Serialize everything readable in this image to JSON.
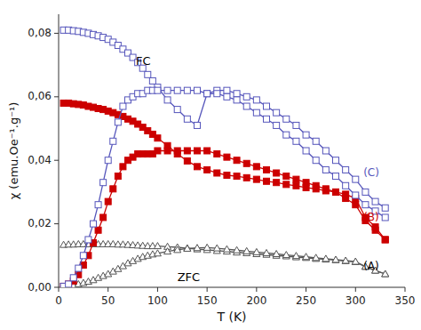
{
  "chart_data": {
    "type": "line",
    "xlabel": "T (K)",
    "ylabel": "χ (emu.Oe⁻¹.g⁻¹)",
    "xlim": [
      0,
      350
    ],
    "ylim": [
      0,
      0.086
    ],
    "xticks": [
      0,
      50,
      100,
      150,
      200,
      250,
      300,
      350
    ],
    "yticks": [
      {
        "value": 0.0,
        "label": "0,00"
      },
      {
        "value": 0.02,
        "label": "0,02"
      },
      {
        "value": 0.04,
        "label": "0,04"
      },
      {
        "value": 0.06,
        "label": "0,06"
      },
      {
        "value": 0.08,
        "label": "0,08"
      }
    ],
    "grid": false,
    "x": [
      5,
      10,
      15,
      20,
      25,
      30,
      35,
      40,
      45,
      50,
      55,
      60,
      65,
      70,
      75,
      80,
      85,
      90,
      95,
      100,
      110,
      120,
      130,
      140,
      150,
      160,
      170,
      180,
      190,
      200,
      210,
      220,
      230,
      240,
      250,
      260,
      270,
      280,
      290,
      300,
      310,
      320,
      330
    ],
    "series": [
      {
        "color": "#555555",
        "marker": "triangle-open",
        "values": [
          0.0134,
          0.0135,
          0.0135,
          0.0136,
          0.0136,
          0.0136,
          0.0136,
          0.0136,
          0.0136,
          0.0136,
          0.0136,
          0.0135,
          0.0135,
          0.0134,
          0.0133,
          0.0132,
          0.0131,
          0.013,
          0.013,
          0.013,
          0.0128,
          0.0126,
          0.0123,
          0.012,
          0.0118,
          0.0115,
          0.0113,
          0.011,
          0.0108,
          0.0105,
          0.0103,
          0.01,
          0.0098,
          0.0095,
          0.0093,
          0.009,
          0.0088,
          0.0086,
          0.0083,
          0.008,
          0.0065,
          0.0053,
          0.0042
        ]
      },
      {
        "color": "#555555",
        "marker": "triangle-open",
        "values": [
          0.0001,
          0.0003,
          0.0006,
          0.001,
          0.0014,
          0.0018,
          0.0023,
          0.003,
          0.0036,
          0.0042,
          0.005,
          0.0058,
          0.0067,
          0.0076,
          0.0083,
          0.009,
          0.0096,
          0.01,
          0.0104,
          0.0107,
          0.0113,
          0.0118,
          0.0122,
          0.0124,
          0.0125,
          0.0123,
          0.012,
          0.0117,
          0.0114,
          0.0111,
          0.0108,
          0.0105,
          0.0102,
          0.0099,
          0.0096,
          0.0093,
          0.009,
          0.0087,
          0.0084,
          0.0081,
          0.0065,
          0.0053,
          0.0042
        ]
      },
      {
        "color": "#cc0000",
        "marker": "square",
        "values": [
          0.058,
          0.058,
          0.0578,
          0.0576,
          0.0574,
          0.057,
          0.0567,
          0.0563,
          0.056,
          0.0555,
          0.055,
          0.0544,
          0.0538,
          0.053,
          0.0523,
          0.0514,
          0.0504,
          0.0493,
          0.0482,
          0.047,
          0.0446,
          0.042,
          0.0398,
          0.038,
          0.037,
          0.036,
          0.0353,
          0.035,
          0.0345,
          0.034,
          0.0334,
          0.033,
          0.0324,
          0.032,
          0.0314,
          0.031,
          0.0304,
          0.03,
          0.0293,
          0.028,
          0.022,
          0.019,
          0.015
        ]
      },
      {
        "color": "#cc0000",
        "marker": "square",
        "values": [
          0.0003,
          0.001,
          0.002,
          0.004,
          0.007,
          0.01,
          0.014,
          0.018,
          0.022,
          0.027,
          0.031,
          0.035,
          0.038,
          0.04,
          0.041,
          0.042,
          0.042,
          0.042,
          0.042,
          0.043,
          0.043,
          0.043,
          0.043,
          0.043,
          0.043,
          0.042,
          0.041,
          0.04,
          0.039,
          0.038,
          0.037,
          0.036,
          0.035,
          0.034,
          0.033,
          0.032,
          0.031,
          0.03,
          0.028,
          0.026,
          0.021,
          0.018,
          0.015
        ]
      },
      {
        "color": "#5555bb",
        "marker": "square-open",
        "values": [
          0.081,
          0.081,
          0.0808,
          0.0806,
          0.0803,
          0.08,
          0.0796,
          0.0792,
          0.0787,
          0.0781,
          0.0772,
          0.0762,
          0.075,
          0.0738,
          0.0724,
          0.0708,
          0.069,
          0.067,
          0.065,
          0.063,
          0.059,
          0.056,
          0.053,
          0.051,
          0.061,
          0.062,
          0.062,
          0.061,
          0.06,
          0.059,
          0.057,
          0.055,
          0.053,
          0.051,
          0.048,
          0.046,
          0.043,
          0.04,
          0.037,
          0.034,
          0.03,
          0.027,
          0.025
        ]
      },
      {
        "color": "#5555bb",
        "marker": "square-open",
        "values": [
          0.0003,
          0.001,
          0.003,
          0.006,
          0.01,
          0.015,
          0.02,
          0.026,
          0.033,
          0.04,
          0.046,
          0.052,
          0.057,
          0.059,
          0.06,
          0.061,
          0.061,
          0.062,
          0.062,
          0.062,
          0.062,
          0.062,
          0.062,
          0.062,
          0.061,
          0.061,
          0.06,
          0.059,
          0.057,
          0.055,
          0.053,
          0.051,
          0.048,
          0.046,
          0.043,
          0.04,
          0.037,
          0.035,
          0.032,
          0.029,
          0.026,
          0.024,
          0.022
        ]
      }
    ],
    "annotations": [
      {
        "text": "FC",
        "x": 78,
        "y": 0.071,
        "color": "#000000"
      },
      {
        "text": "ZFC",
        "x": 120,
        "y": 0.003,
        "color": "#000000"
      },
      {
        "text": "(C)",
        "x": 308,
        "y": 0.036,
        "color": "#5555bb"
      },
      {
        "text": "(B)",
        "x": 308,
        "y": 0.022,
        "color": "#cc0000"
      },
      {
        "text": "(A)",
        "x": 308,
        "y": 0.0065,
        "color": "#000000"
      }
    ]
  }
}
